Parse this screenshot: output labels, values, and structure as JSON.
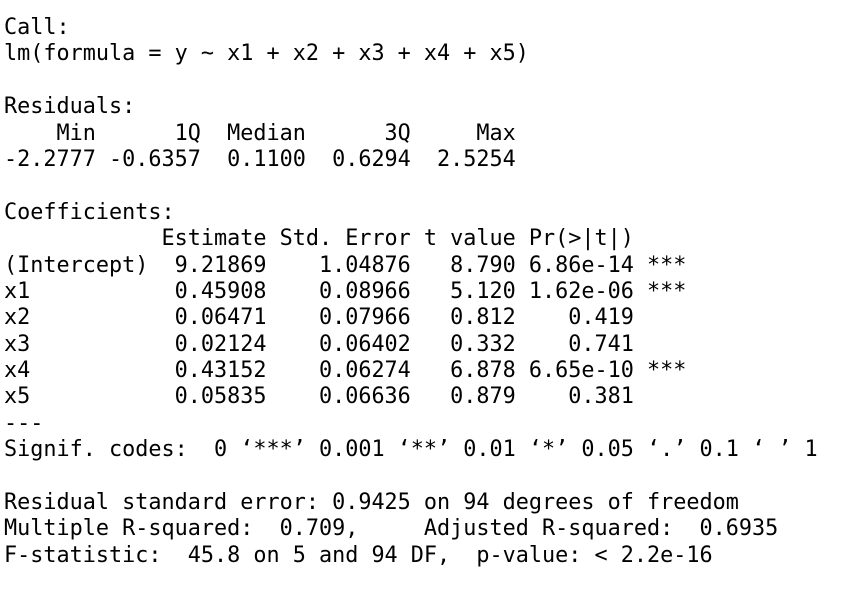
{
  "call": {
    "label": "Call:",
    "formula": "lm(formula = y ~ x1 + x2 + x3 + x4 + x5)"
  },
  "residuals": {
    "label": "Residuals:",
    "header": "    Min      1Q  Median      3Q     Max",
    "values": "-2.2777 -0.6357  0.1100  0.6294  2.5254"
  },
  "coefficients": {
    "label": "Coefficients:",
    "header": "            Estimate Std. Error t value Pr(>|t|)",
    "rows": [
      "(Intercept)  9.21869    1.04876   8.790 6.86e-14 ***",
      "x1           0.45908    0.08966   5.120 1.62e-06 ***",
      "x2           0.06471    0.07966   0.812    0.419",
      "x3           0.02124    0.06402   0.332    0.741",
      "x4           0.43152    0.06274   6.878 6.65e-10 ***",
      "x5           0.05835    0.06636   0.879    0.381"
    ],
    "separator": "---",
    "signif": "Signif. codes:  0 ‘***’ 0.001 ‘**’ 0.01 ‘*’ 0.05 ‘.’ 0.1 ‘ ’ 1"
  },
  "summary": {
    "residual_se": "Residual standard error: 0.9425 on 94 degrees of freedom",
    "r_squared": "Multiple R-squared:  0.709,     Adjusted R-squared:  0.6935",
    "f_statistic": "F-statistic:  45.8 on 5 and 94 DF,  p-value: < 2.2e-16"
  }
}
